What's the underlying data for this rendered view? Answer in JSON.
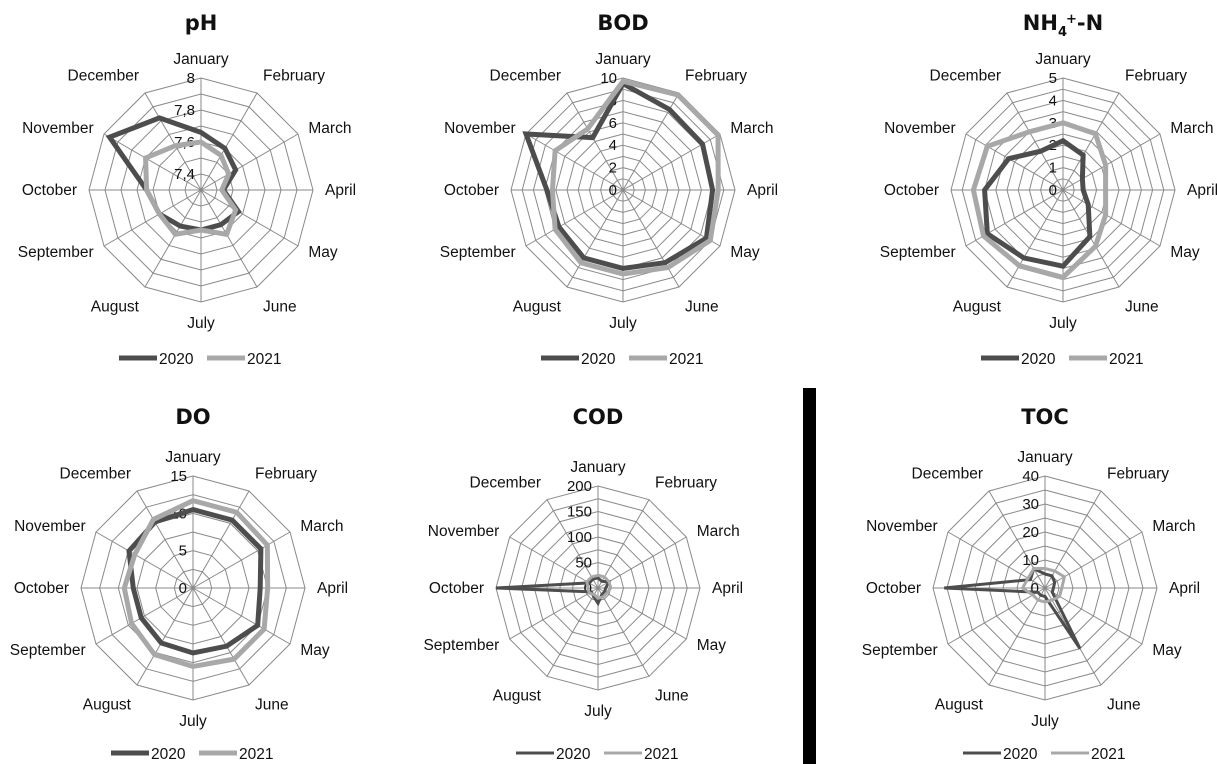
{
  "colors": {
    "s2020": "#4d4d4d",
    "s2021": "#a8a8a8",
    "grid": "#8a8a8a",
    "divider": "#000000"
  },
  "chart_data": [
    {
      "type": "radar",
      "title": "pH",
      "categories": [
        "January",
        "February",
        "March",
        "April",
        "May",
        "June",
        "July",
        "August",
        "September",
        "October",
        "November",
        "December"
      ],
      "rrange": [
        7.3,
        8
      ],
      "rings": 7,
      "ticks": [
        {
          "label": "7,4",
          "value": 7.4
        },
        {
          "label": "7,6",
          "value": 7.6
        },
        {
          "label": "7,8",
          "value": 7.8
        },
        {
          "label": "8",
          "value": 8.0
        }
      ],
      "series": [
        {
          "name": "2020",
          "values": [
            7.66,
            7.6,
            7.55,
            7.44,
            7.57,
            7.55,
            7.55,
            7.56,
            7.6,
            7.64,
            7.96,
            7.82
          ]
        },
        {
          "name": "2021",
          "values": [
            7.6,
            7.55,
            7.5,
            7.43,
            7.55,
            7.62,
            7.55,
            7.62,
            7.6,
            7.64,
            7.7,
            7.62
          ]
        }
      ],
      "line_width": 5,
      "legend": [
        "2020",
        "2021"
      ],
      "legend_position": "bottom"
    },
    {
      "type": "radar",
      "title": "BOD",
      "categories": [
        "January",
        "February",
        "March",
        "April",
        "May",
        "June",
        "July",
        "August",
        "September",
        "October",
        "November",
        "December"
      ],
      "rrange": [
        0,
        10
      ],
      "rings": 10,
      "ticks": [
        {
          "label": "0",
          "value": 0
        },
        {
          "label": "2",
          "value": 2
        },
        {
          "label": "4",
          "value": 4
        },
        {
          "label": "6",
          "value": 6
        },
        {
          "label": "8",
          "value": 8
        },
        {
          "label": "10",
          "value": 10
        }
      ],
      "series": [
        {
          "name": "2020",
          "values": [
            9.5,
            8.3,
            8.2,
            8.0,
            8.6,
            7.5,
            7.0,
            7.0,
            6.6,
            6.8,
            10.0,
            5.4
          ]
        },
        {
          "name": "2021",
          "values": [
            9.7,
            9.8,
            9.8,
            8.5,
            9.0,
            8.0,
            7.5,
            7.5,
            7.0,
            6.3,
            7.0,
            6.3
          ]
        }
      ],
      "line_width": 5,
      "legend": [
        "2020",
        "2021"
      ],
      "legend_position": "bottom"
    },
    {
      "type": "radar",
      "title": "NH4+-N",
      "title_html": {
        "base": "NH",
        "sub": "4",
        "sup": "+",
        "rest": "-N"
      },
      "categories": [
        "January",
        "February",
        "March",
        "April",
        "May",
        "June",
        "July",
        "August",
        "September",
        "October",
        "November",
        "December"
      ],
      "rrange": [
        0,
        5
      ],
      "rings": 10,
      "ticks": [
        {
          "label": "0",
          "value": 0
        },
        {
          "label": "1",
          "value": 1
        },
        {
          "label": "2",
          "value": 2
        },
        {
          "label": "3",
          "value": 3
        },
        {
          "label": "4",
          "value": 4
        },
        {
          "label": "5",
          "value": 5
        }
      ],
      "series": [
        {
          "name": "2020",
          "values": [
            2.2,
            1.8,
            1.0,
            0.9,
            1.3,
            2.4,
            3.4,
            3.5,
            3.9,
            3.5,
            2.8,
            2.0
          ]
        },
        {
          "name": "2021",
          "values": [
            3.0,
            2.9,
            2.2,
            1.9,
            2.2,
            2.9,
            3.9,
            3.9,
            4.1,
            4.0,
            3.9,
            3.0
          ]
        }
      ],
      "line_width": 5,
      "legend": [
        "2020",
        "2021"
      ],
      "legend_position": "bottom"
    },
    {
      "type": "radar",
      "title": "DO",
      "categories": [
        "January",
        "February",
        "March",
        "April",
        "May",
        "June",
        "July",
        "August",
        "September",
        "October",
        "November",
        "December"
      ],
      "rrange": [
        0,
        15
      ],
      "rings": 6,
      "ticks": [
        {
          "label": "0",
          "value": 0
        },
        {
          "label": "5",
          "value": 5
        },
        {
          "label": "10",
          "value": 10
        },
        {
          "label": "15",
          "value": 15
        }
      ],
      "series": [
        {
          "name": "2020",
          "values": [
            10.5,
            10.5,
            10.5,
            9.0,
            10.0,
            9.0,
            8.7,
            8.5,
            8.0,
            8.0,
            9.9,
            10.2
          ]
        },
        {
          "name": "2021",
          "values": [
            11.7,
            11.7,
            11.5,
            10.0,
            11.0,
            11.0,
            10.5,
            10.3,
            9.5,
            9.2,
            9.0,
            10.6
          ]
        }
      ],
      "line_width": 5,
      "legend": [
        "2020",
        "2021"
      ],
      "legend_position": "bottom"
    },
    {
      "type": "radar",
      "title": "COD",
      "categories": [
        "January",
        "February",
        "March",
        "April",
        "May",
        "June",
        "July",
        "August",
        "September",
        "October",
        "November",
        "December"
      ],
      "rrange": [
        0,
        200
      ],
      "rings": 8,
      "ticks": [
        {
          "label": "0",
          "value": 0
        },
        {
          "label": "50",
          "value": 50
        },
        {
          "label": "100",
          "value": 100
        },
        {
          "label": "150",
          "value": 150
        },
        {
          "label": "200",
          "value": 200
        }
      ],
      "series": [
        {
          "name": "2020",
          "values": [
            20,
            15,
            25,
            15,
            15,
            15,
            30,
            18,
            15,
            200,
            20,
            20
          ]
        },
        {
          "name": "2021",
          "values": [
            25,
            25,
            25,
            25,
            20,
            20,
            20,
            15,
            20,
            20,
            25,
            25
          ]
        }
      ],
      "line_width": 3,
      "legend": [
        "2020",
        "2021"
      ],
      "legend_position": "bottom"
    },
    {
      "type": "radar",
      "title": "TOC",
      "categories": [
        "January",
        "February",
        "March",
        "April",
        "May",
        "June",
        "July",
        "August",
        "September",
        "October",
        "November",
        "December"
      ],
      "rrange": [
        0,
        40
      ],
      "rings": 8,
      "ticks": [
        {
          "label": "0",
          "value": 0
        },
        {
          "label": "10",
          "value": 10
        },
        {
          "label": "20",
          "value": 20
        },
        {
          "label": "30",
          "value": 30
        },
        {
          "label": "40",
          "value": 40
        }
      ],
      "series": [
        {
          "name": "2020",
          "values": [
            5,
            5,
            4,
            3,
            3,
            25,
            3,
            3,
            3,
            36,
            6,
            8
          ]
        },
        {
          "name": "2021",
          "values": [
            7,
            7,
            8,
            6,
            6,
            5,
            5,
            5,
            5,
            8,
            7,
            8
          ]
        }
      ],
      "line_width": 3,
      "legend": [
        "2020",
        "2021"
      ],
      "legend_position": "bottom"
    }
  ]
}
